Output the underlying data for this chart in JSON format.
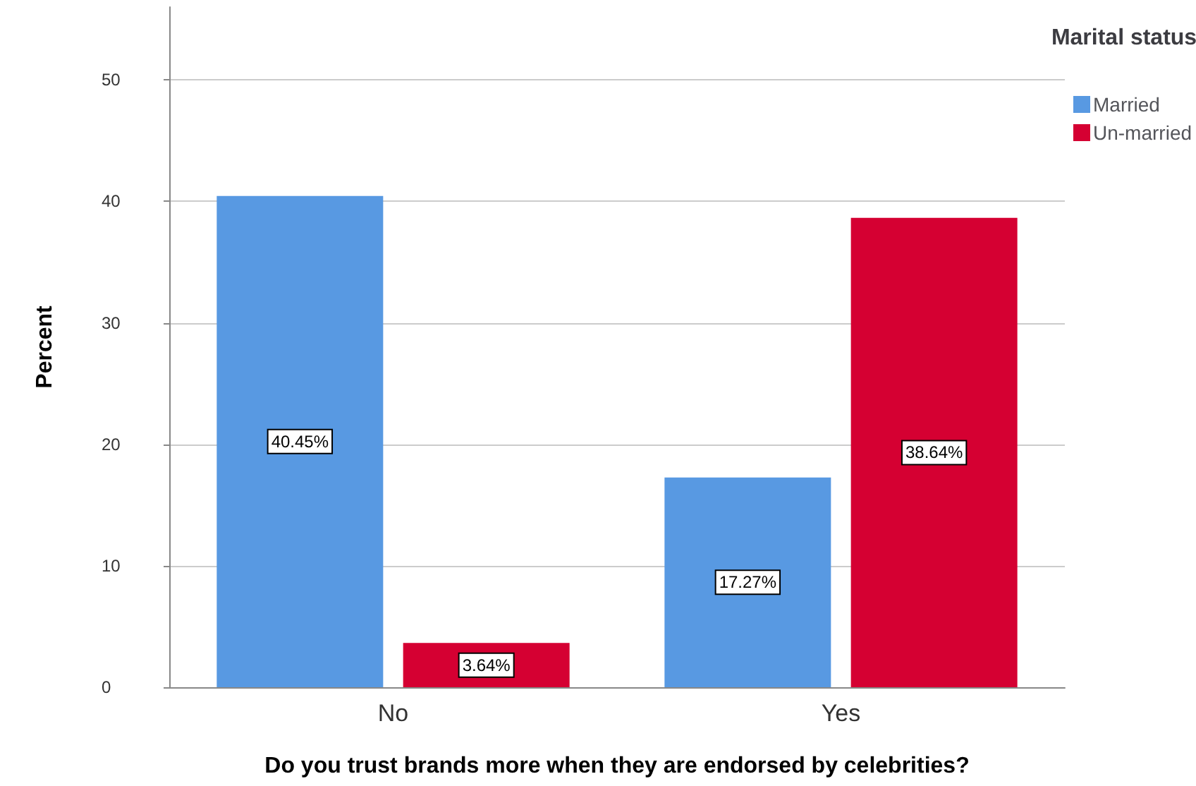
{
  "chart_data": {
    "type": "bar",
    "xlabel": "Do you trust brands more when they are endorsed by celebrities?",
    "ylabel": "Percent",
    "legend_title": "Marital status",
    "categories": [
      "No",
      "Yes"
    ],
    "series": [
      {
        "name": "Married",
        "color": "#5899e2",
        "values": [
          40.45,
          17.27
        ],
        "value_labels": [
          "40.45%",
          "17.27%"
        ]
      },
      {
        "name": "Un-married",
        "color": "#d50032",
        "values": [
          3.64,
          38.64
        ],
        "value_labels": [
          "3.64%",
          "38.64%"
        ]
      }
    ],
    "ylim": [
      0,
      56
    ],
    "yticks": [
      0,
      10,
      20,
      30,
      40,
      50
    ],
    "grid": "y",
    "legend": "top right"
  }
}
